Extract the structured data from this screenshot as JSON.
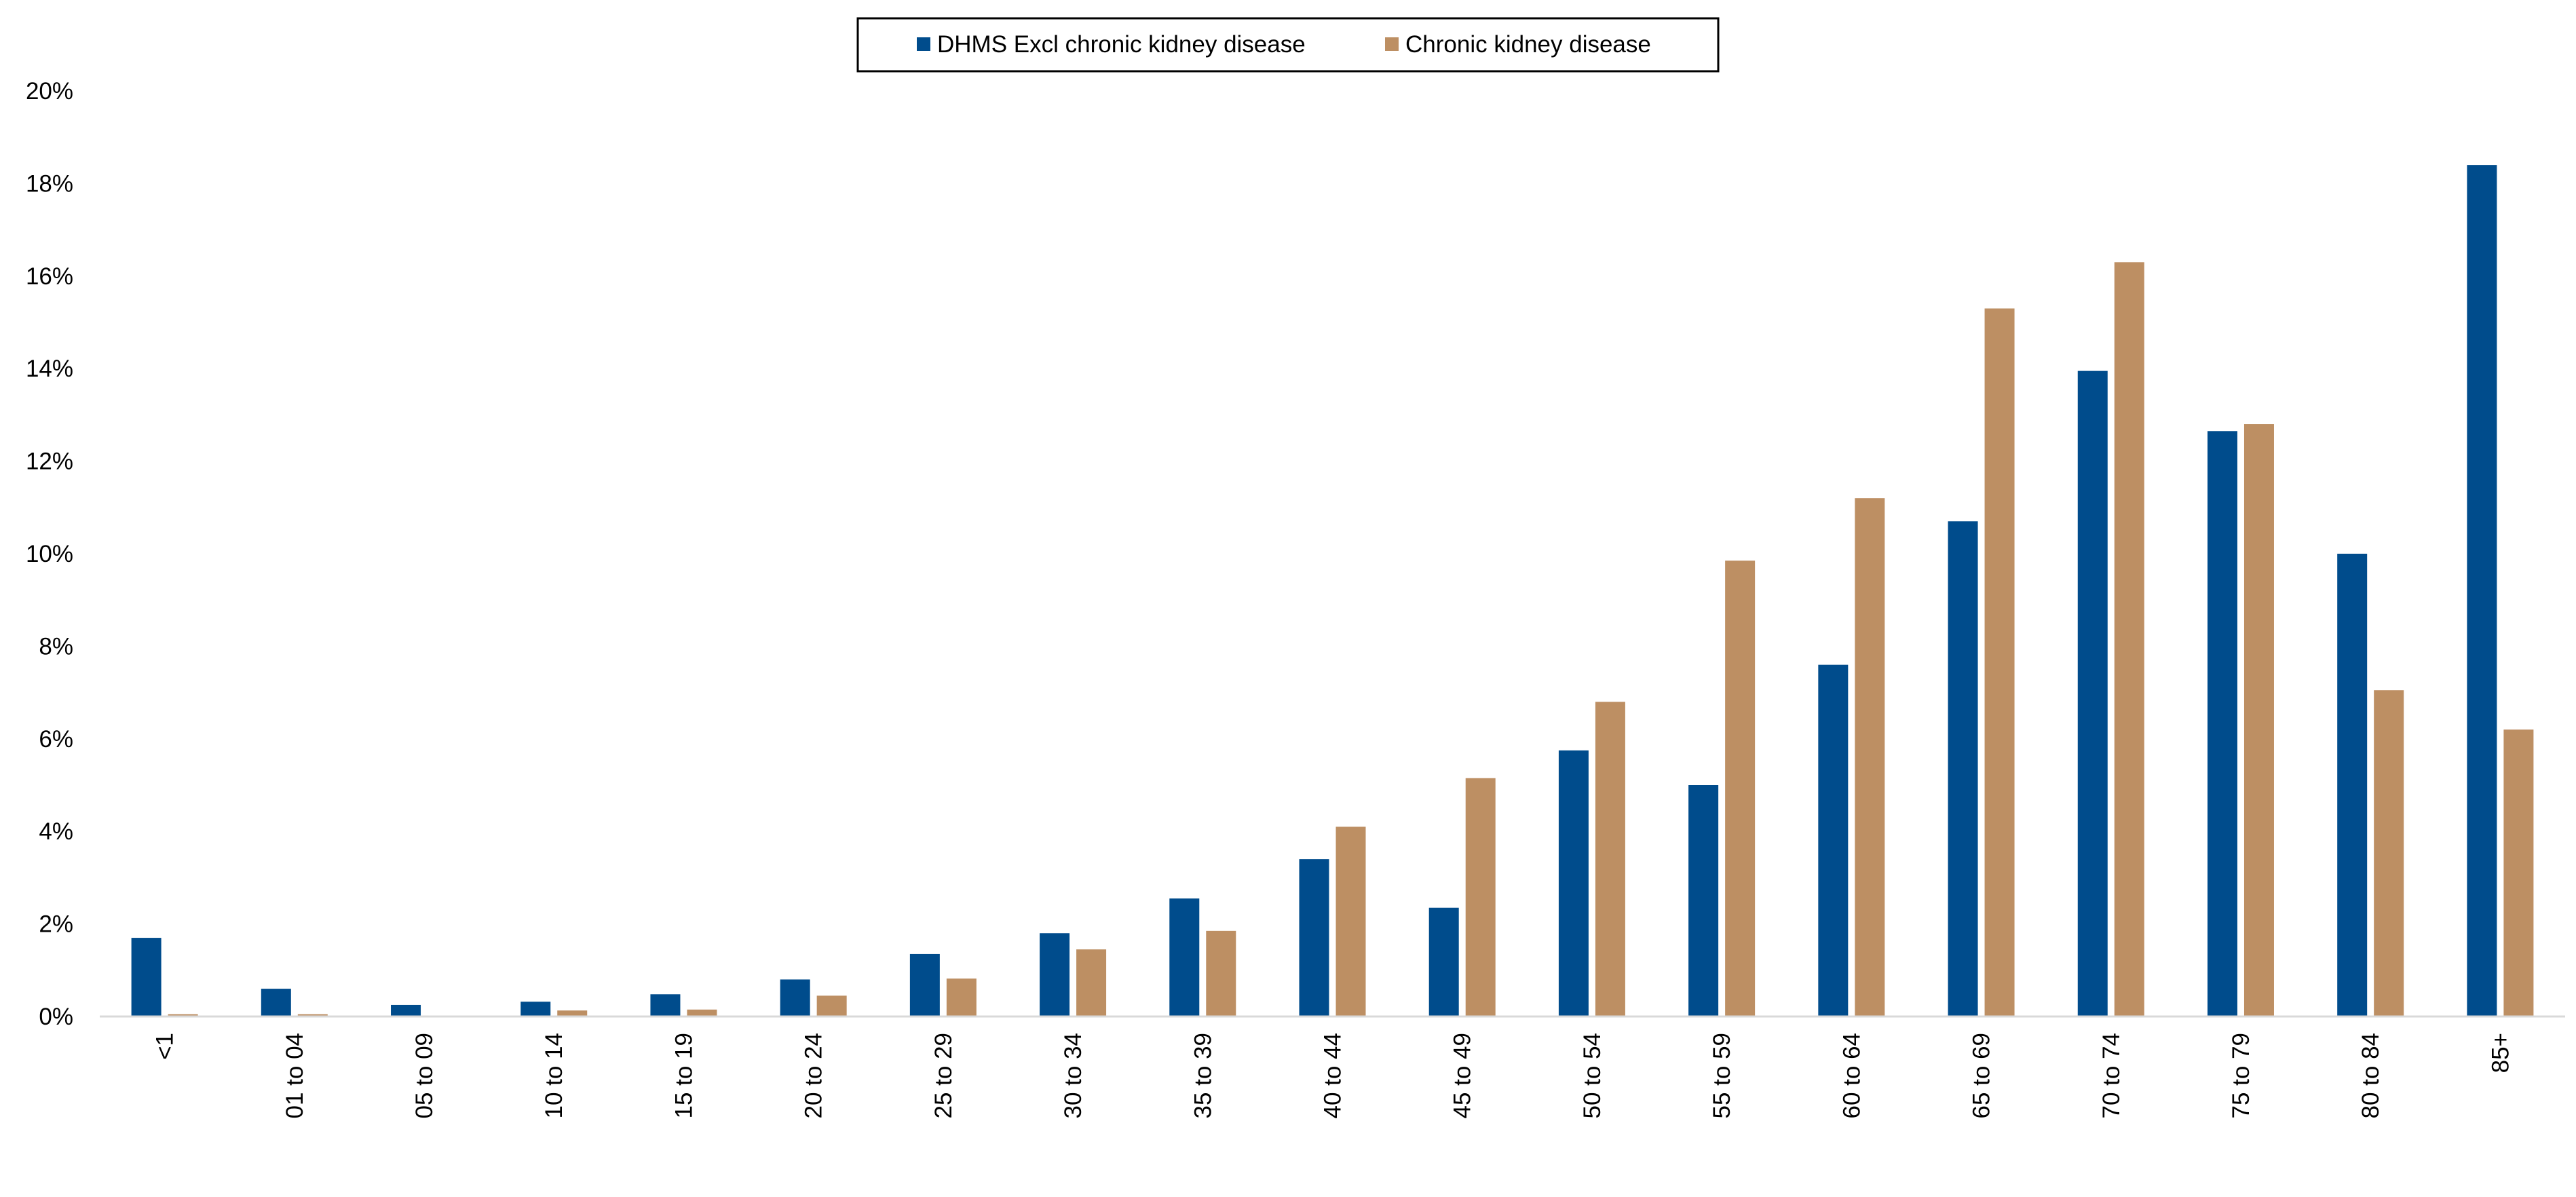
{
  "chart_data": {
    "type": "bar",
    "categories": [
      "<1",
      "01 to 04",
      "05 to 09",
      "10 to 14",
      "15 to 19",
      "20 to 24",
      "25 to 29",
      "30 to 34",
      "35 to 39",
      "40 to 44",
      "45 to 49",
      "50 to 54",
      "55 to 59",
      "60 to 64",
      "65 to 69",
      "70 to 74",
      "75 to 79",
      "80 to 84",
      "85+"
    ],
    "series": [
      {
        "name": "DHMS Excl chronic kidney disease",
        "color": "#004C8C",
        "values": [
          1.7,
          0.6,
          0.25,
          0.32,
          0.48,
          0.8,
          1.35,
          1.8,
          2.55,
          3.4,
          2.35,
          5.75,
          5.0,
          7.6,
          10.7,
          13.95,
          12.65,
          10.0,
          18.4
        ]
      },
      {
        "name": "Chronic kidney disease",
        "color": "#BD8F63",
        "values": [
          0.05,
          0.05,
          0.0,
          0.13,
          0.15,
          0.45,
          0.82,
          1.45,
          1.85,
          4.1,
          5.15,
          6.8,
          9.85,
          11.2,
          15.3,
          16.3,
          12.8,
          7.05,
          6.2
        ]
      }
    ],
    "yticks": [
      "0%",
      "2%",
      "4%",
      "6%",
      "8%",
      "10%",
      "12%",
      "14%",
      "16%",
      "18%",
      "20%"
    ],
    "ylim": [
      0,
      20
    ],
    "legend_position": "top-center",
    "grid": false,
    "title": "",
    "xlabel": "",
    "ylabel": ""
  }
}
